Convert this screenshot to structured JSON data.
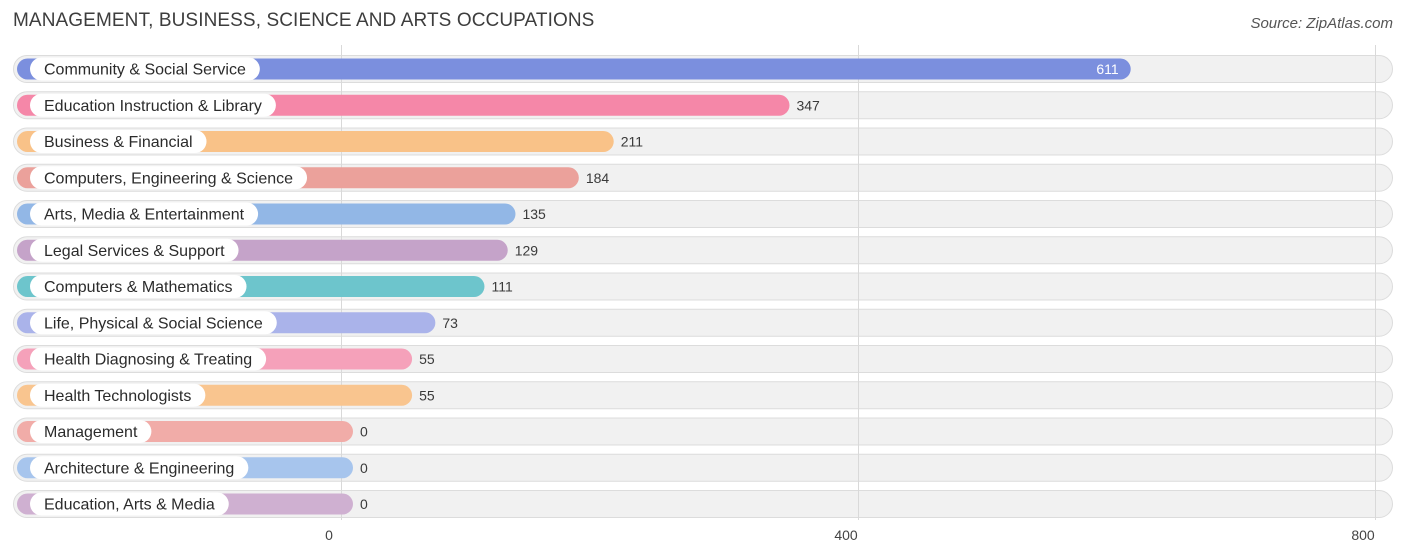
{
  "chart_data": {
    "type": "bar",
    "orientation": "horizontal",
    "title": "MANAGEMENT, BUSINESS, SCIENCE AND ARTS OCCUPATIONS",
    "source": "Source: ZipAtlas.com",
    "categories": [
      "Community & Social Service",
      "Education Instruction & Library",
      "Business & Financial",
      "Computers, Engineering & Science",
      "Arts, Media & Entertainment",
      "Legal Services & Support",
      "Computers & Mathematics",
      "Life, Physical & Social Science",
      "Health Diagnosing & Treating",
      "Health Technologists",
      "Management",
      "Architecture & Engineering",
      "Education, Arts & Media"
    ],
    "values": [
      611,
      347,
      211,
      184,
      135,
      129,
      111,
      73,
      55,
      55,
      0,
      0,
      0
    ],
    "value_labels": [
      "611",
      "347",
      "211",
      "184",
      "135",
      "129",
      "111",
      "73",
      "55",
      "55",
      "0",
      "0",
      "0"
    ],
    "colors": [
      "#7b8fde",
      "#f587a8",
      "#f9c288",
      "#eba19b",
      "#92b7e6",
      "#c5a3c9",
      "#6dc5cc",
      "#aab3ea",
      "#f5a1ba",
      "#f9c58f",
      "#f1aca8",
      "#a7c5ed",
      "#cfb0d1"
    ],
    "xlim": [
      0,
      800
    ],
    "ticks": [
      0,
      400,
      800
    ],
    "tick_labels": [
      "0",
      "400",
      "800"
    ],
    "grid": true,
    "xlabel": "",
    "ylabel": ""
  }
}
